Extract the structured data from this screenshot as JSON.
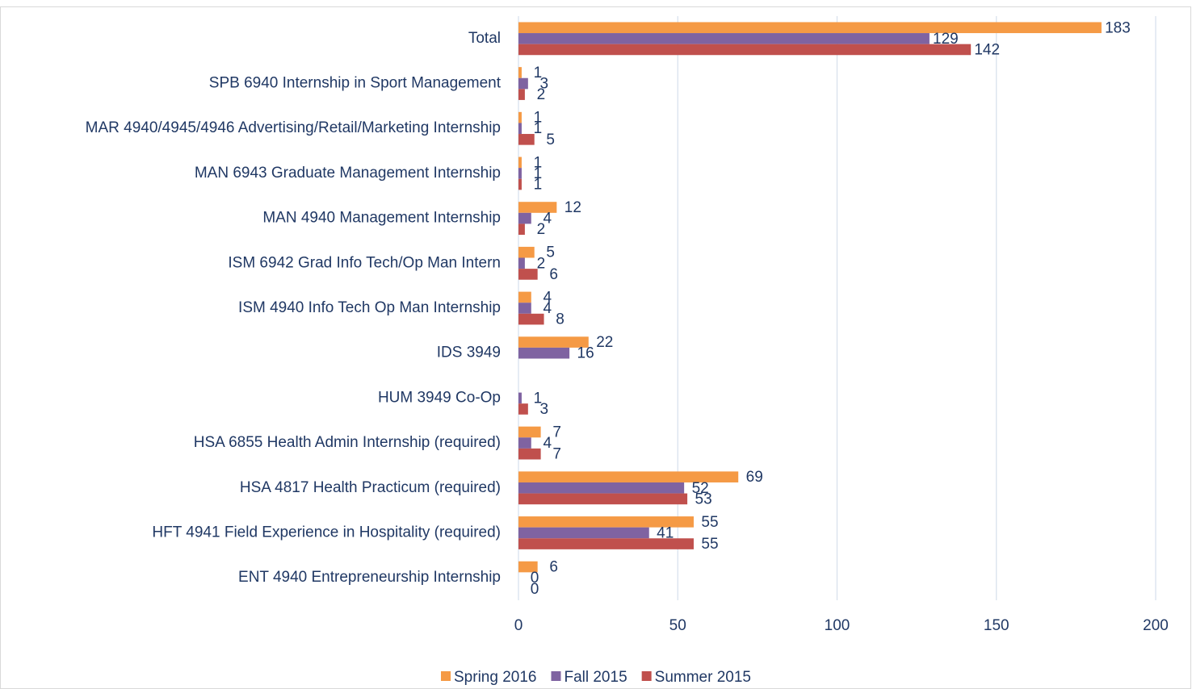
{
  "chart_data": {
    "type": "bar",
    "orientation": "horizontal",
    "categories": [
      "Total",
      "SPB 6940 Internship in Sport Management",
      "MAR 4940/4945/4946 Advertising/Retail/Marketing Internship",
      "MAN 6943 Graduate Management Internship",
      "MAN 4940 Management Internship",
      "ISM 6942 Grad Info Tech/Op Man Intern",
      "ISM 4940 Info Tech Op Man Internship",
      "IDS 3949",
      "HUM 3949 Co-Op",
      "HSA 6855 Health Admin Internship (required)",
      "HSA 4817 Health Practicum (required)",
      "HFT 4941 Field Experience in Hospitality (required)",
      "ENT 4940  Entrepreneurship Internship"
    ],
    "series": [
      {
        "name": "Spring 2016",
        "color": "#f59a45",
        "values": [
          183,
          1,
          1,
          1,
          12,
          5,
          4,
          22,
          null,
          7,
          69,
          55,
          6
        ]
      },
      {
        "name": "Fall 2015",
        "color": "#7f63a1",
        "values": [
          129,
          3,
          1,
          1,
          4,
          2,
          4,
          16,
          1,
          4,
          52,
          41,
          0
        ]
      },
      {
        "name": "Summer 2015",
        "color": "#c0504d",
        "values": [
          142,
          2,
          5,
          1,
          2,
          6,
          8,
          null,
          3,
          7,
          53,
          55,
          0
        ]
      }
    ],
    "xlim": [
      0,
      200
    ],
    "xticks": [
      0,
      50,
      100,
      150,
      200
    ],
    "grid": true,
    "legend": "bottom"
  }
}
